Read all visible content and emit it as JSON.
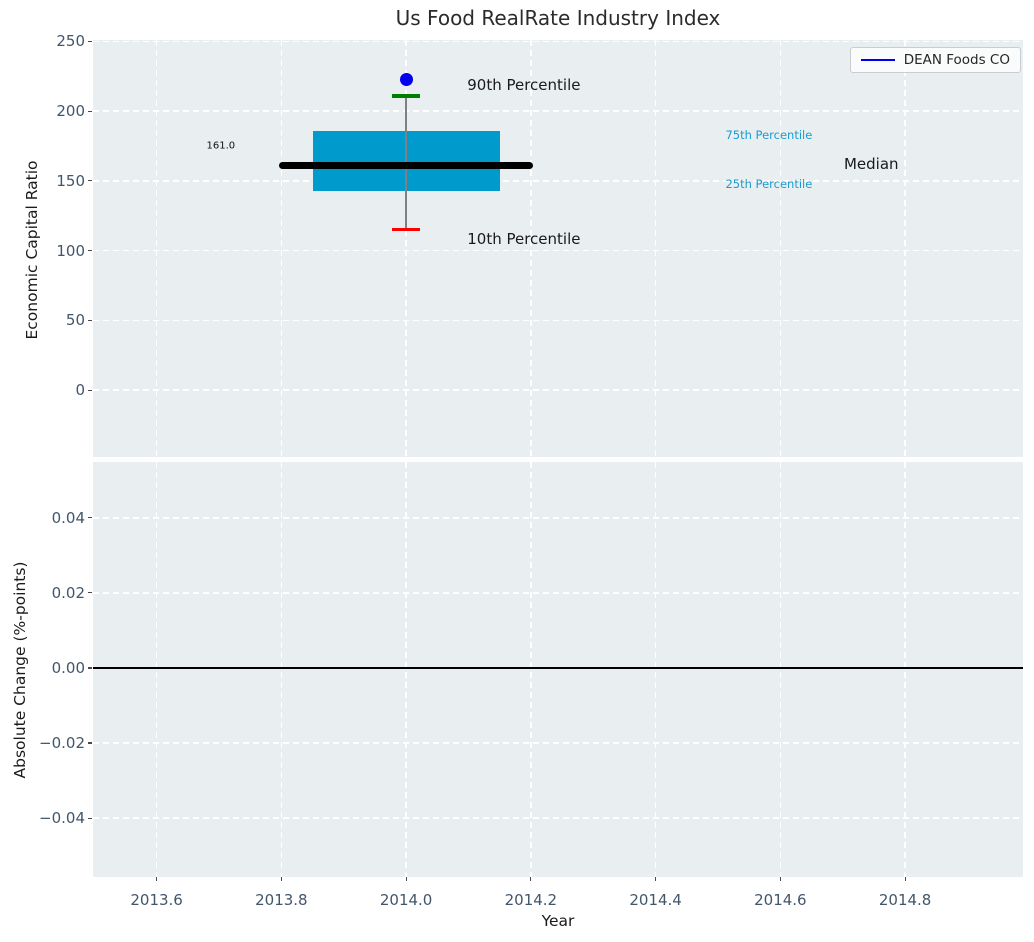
{
  "figure": {
    "title": "Us Food RealRate Industry Index"
  },
  "legend": {
    "entries": [
      {
        "label": "DEAN Foods CO",
        "color": "#0000ee"
      }
    ],
    "position": "upper right"
  },
  "colors": {
    "axes_background": "#e9eef0",
    "grid": "#ffffff",
    "box_fill": "#009acd",
    "median_line": "#000000",
    "whisker": "#808080",
    "cap_90th": "#008000",
    "cap_10th": "#ff0000",
    "company_dot": "#0000ee",
    "percentile_label": "#1b9bd0",
    "tick_label": "#42566b",
    "zero_line": "#000000"
  },
  "chart_data": [
    {
      "type": "boxplot",
      "title": "Us Food RealRate Industry Index",
      "xlabel": "",
      "ylabel": "Economic Capital Ratio",
      "xlim": [
        2013.498,
        2014.989
      ],
      "ylim": [
        -48,
        251
      ],
      "xticks": [
        2013.6,
        2013.8,
        2014.0,
        2014.2,
        2014.4,
        2014.6,
        2014.8
      ],
      "xtick_labels": [],
      "yticks": [
        0,
        50,
        100,
        150,
        200,
        250
      ],
      "ytick_labels": [
        "0",
        "50",
        "100",
        "150",
        "200",
        "250"
      ],
      "grid": true,
      "box": {
        "x": 2014.0,
        "p10": 115,
        "p25": 143,
        "median": 161.0,
        "p75": 186,
        "p90": 211,
        "box_halfwidth": 0.15,
        "median_halfwidth": 0.203,
        "cap_halfwidth": 0.022
      },
      "company_point": {
        "label": "DEAN Foods CO",
        "x": 2014.0,
        "y": 223
      },
      "annotations": [
        {
          "text": "90th Percentile",
          "x": 2014.098,
          "y": 219,
          "kind": "black-large"
        },
        {
          "text": "10th Percentile",
          "x": 2014.098,
          "y": 108,
          "kind": "black-large"
        },
        {
          "text": "75th Percentile",
          "x": 2014.512,
          "y": 183,
          "kind": "cyan-small"
        },
        {
          "text": "25th Percentile",
          "x": 2014.512,
          "y": 148,
          "kind": "cyan-small"
        },
        {
          "text": "Median",
          "x": 2014.702,
          "y": 162,
          "kind": "black-large"
        },
        {
          "text": "161.0",
          "x": 2013.68,
          "y": 175,
          "kind": "tiny"
        }
      ]
    },
    {
      "type": "line",
      "title": "",
      "xlabel": "Year",
      "ylabel": "Absolute Change (%-points)",
      "xlim": [
        2013.498,
        2014.989
      ],
      "ylim": [
        -0.0557,
        0.0549
      ],
      "xticks": [
        2013.6,
        2013.8,
        2014.0,
        2014.2,
        2014.4,
        2014.6,
        2014.8
      ],
      "xtick_labels": [
        "2013.6",
        "2013.8",
        "2014.0",
        "2014.2",
        "2014.4",
        "2014.6",
        "2014.8"
      ],
      "yticks": [
        0.04,
        0.02,
        0,
        -0.02,
        -0.04
      ],
      "ytick_labels": [
        "0.04",
        "0.02",
        "0.00",
        "−0.02",
        "−0.04"
      ],
      "grid": true,
      "zero_line_y": 0.0,
      "series": []
    }
  ]
}
